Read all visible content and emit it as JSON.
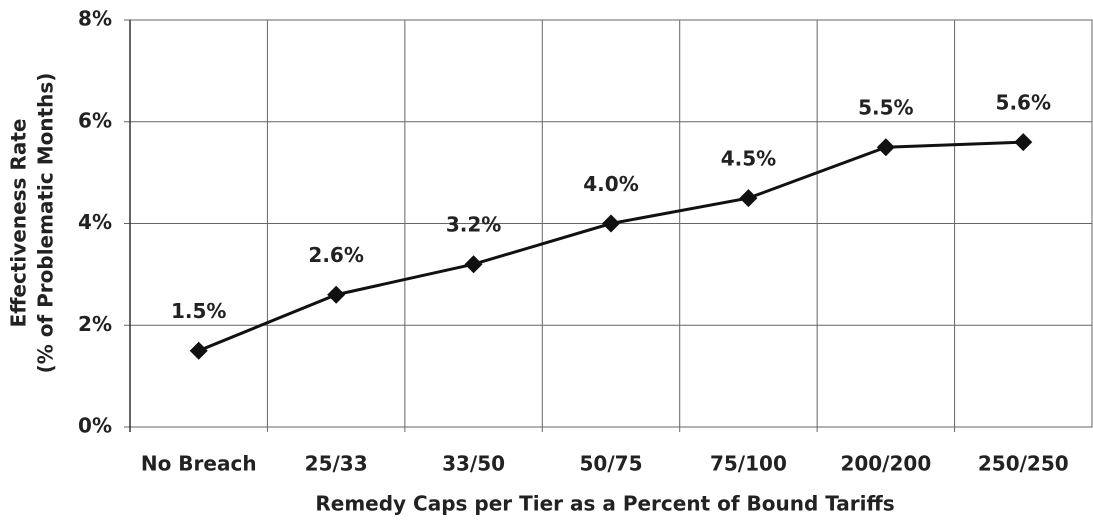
{
  "chart_data": {
    "type": "line",
    "xlabel": "Remedy Caps per Tier as a Percent of Bound Tariffs",
    "ylabel": [
      "Effectiveness Rate",
      "(% of Problematic Months)"
    ],
    "categories": [
      "No Breach",
      "25/33",
      "33/50",
      "50/75",
      "75/100",
      "200/200",
      "250/250"
    ],
    "values": [
      1.5,
      2.6,
      3.2,
      4.0,
      4.5,
      5.5,
      5.6
    ],
    "value_labels": [
      "1.5%",
      "2.6%",
      "3.2%",
      "4.0%",
      "4.5%",
      "5.5%",
      "5.6%"
    ],
    "color": "#111111",
    "ylim": [
      0,
      8
    ],
    "yticks": [
      {
        "value": 0,
        "label": "0%"
      },
      {
        "value": 2,
        "label": "2%"
      },
      {
        "value": 4,
        "label": "4%"
      },
      {
        "value": 6,
        "label": "6%"
      },
      {
        "value": 8,
        "label": "8%"
      }
    ],
    "grid": true
  }
}
